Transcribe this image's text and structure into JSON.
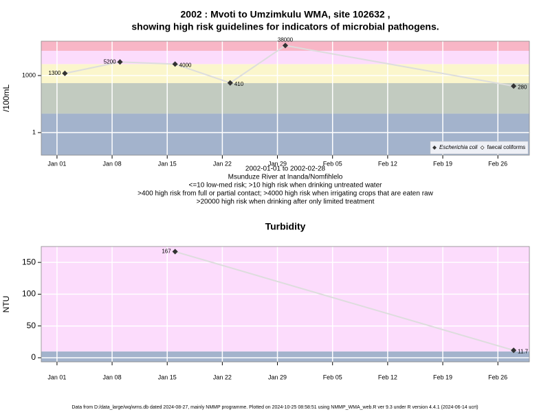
{
  "chart_data": [
    {
      "type": "line",
      "title": [
        "2002 : Mvoti to Umzimkulu WMA, site 102632 ,",
        "showing high risk guidelines for indicators of microbial pathogens."
      ],
      "notes": [
        "2002-01-01 to 2002-02-28",
        "Msunduze River at Inanda/Nomfihlelo",
        "<=10 low-med risk; >10 high risk when drinking untreated water",
        ">400 high risk from full or partial contact; >4000 high risk when irrigating crops that are eaten raw",
        ">20000 high risk when drinking after only limited treatment"
      ],
      "ylabel": "/100mL",
      "log": true,
      "grid": true,
      "legend": "bottom-right",
      "x": [
        "2002-01-02",
        "2002-01-09",
        "2002-01-16",
        "2002-01-23",
        "2002-01-30",
        "2002-02-28"
      ],
      "xlim": [
        "2001-12-30",
        "2002-03-02"
      ],
      "xticks": [
        {
          "value": "2002-01-01",
          "label": "Jan 01"
        },
        {
          "value": "2002-01-08",
          "label": "Jan 08"
        },
        {
          "value": "2002-01-15",
          "label": "Jan 15"
        },
        {
          "value": "2002-01-22",
          "label": "Jan 22"
        },
        {
          "value": "2002-01-29",
          "label": "Jan 29"
        },
        {
          "value": "2002-02-05",
          "label": "Feb 05"
        },
        {
          "value": "2002-02-12",
          "label": "Feb 12"
        },
        {
          "value": "2002-02-19",
          "label": "Feb 19"
        },
        {
          "value": "2002-02-26",
          "label": "Feb 26"
        }
      ],
      "ylim": [
        0.065,
        64000
      ],
      "yticks": [
        1,
        1000
      ],
      "line_color": "#dddddd",
      "bands": [
        {
          "from": null,
          "to": 10,
          "color": "#a3b3cc"
        },
        {
          "from": 10,
          "to": 400,
          "color": "#c2cbc0"
        },
        {
          "from": 400,
          "to": 4000,
          "color": "#fbf6cc"
        },
        {
          "from": 4000,
          "to": 20000,
          "color": "#fcdcfc"
        },
        {
          "from": 20000,
          "to": null,
          "color": "#f8b6c6"
        }
      ],
      "series": [
        {
          "name": "Escherichia coli",
          "color": "#333333",
          "marker": "filled",
          "values": [
            1300,
            5200,
            4000,
            410,
            38000,
            280
          ]
        },
        {
          "name": "faecal coliforms",
          "color": "#333333",
          "marker": "open",
          "values": [
            null,
            null,
            null,
            null,
            null,
            null
          ]
        }
      ]
    },
    {
      "type": "line",
      "title": [
        "Turbidity"
      ],
      "ylabel": "NTU",
      "log": false,
      "grid": true,
      "x": [
        "2002-01-16",
        "2002-02-28"
      ],
      "xlim": [
        "2001-12-30",
        "2002-03-02"
      ],
      "xticks": [
        {
          "value": "2002-01-01",
          "label": "Jan 01"
        },
        {
          "value": "2002-01-08",
          "label": "Jan 08"
        },
        {
          "value": "2002-01-15",
          "label": "Jan 15"
        },
        {
          "value": "2002-01-22",
          "label": "Jan 22"
        },
        {
          "value": "2002-01-29",
          "label": "Jan 29"
        },
        {
          "value": "2002-02-05",
          "label": "Feb 05"
        },
        {
          "value": "2002-02-12",
          "label": "Feb 12"
        },
        {
          "value": "2002-02-19",
          "label": "Feb 19"
        },
        {
          "value": "2002-02-26",
          "label": "Feb 26"
        }
      ],
      "ylim": [
        -6.5,
        175
      ],
      "yticks": [
        0,
        50,
        100,
        150
      ],
      "line_color": "#dddddd",
      "bands": [
        {
          "from": null,
          "to": 10,
          "color": "#a3b3cc"
        },
        {
          "from": 10,
          "to": null,
          "color": "#fcdcfc"
        }
      ],
      "series": [
        {
          "color": "#333333",
          "marker": "filled",
          "values": [
            167,
            11.7
          ]
        }
      ]
    }
  ],
  "footer": "Data from D:/data_large/wq/wms.db dated 2024-08-27, mainly NMMP programme. Plotted on 2024-10-25 08:58:51 using NMMP_WMA_web.R ver 9.3 under R version 4.4.1 (2024-06-14 ucrt)"
}
